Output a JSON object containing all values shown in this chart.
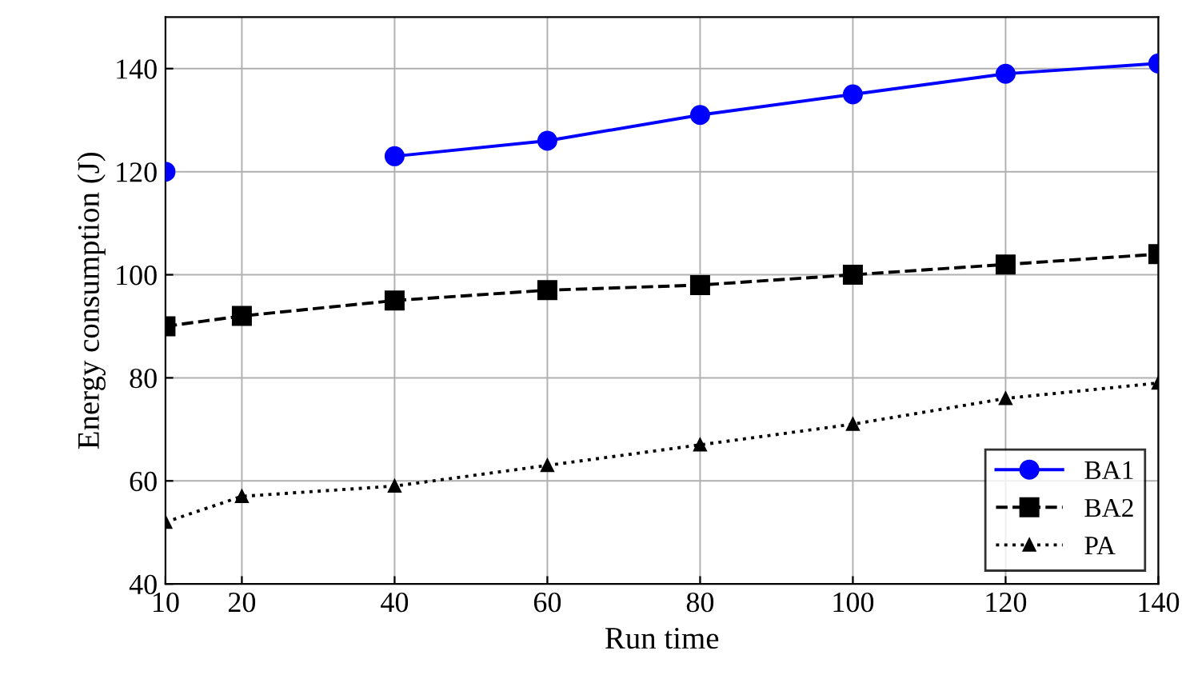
{
  "chart_data": {
    "type": "line",
    "xlabel": "Run time",
    "ylabel": "Energy consumption (J)",
    "x": [
      10,
      20,
      40,
      60,
      80,
      100,
      120,
      140
    ],
    "series": [
      {
        "name": "BA1",
        "color": "#0000ff",
        "marker": "circle",
        "line_style": "solid",
        "values": [
          120,
          null,
          123,
          126,
          131,
          135,
          139,
          141
        ]
      },
      {
        "name": "BA2",
        "color": "#000000",
        "marker": "square",
        "line_style": "dashed",
        "values": [
          90,
          92,
          95,
          97,
          98,
          100,
          102,
          104
        ]
      },
      {
        "name": "PA",
        "color": "#000000",
        "marker": "triangle",
        "line_style": "dotted",
        "values": [
          52,
          57,
          59,
          63,
          67,
          71,
          76,
          79
        ]
      }
    ],
    "xlim": [
      10,
      140
    ],
    "ylim": [
      40,
      150
    ],
    "xticks": [
      10,
      20,
      40,
      60,
      80,
      100,
      120,
      140
    ],
    "yticks": [
      40,
      60,
      80,
      100,
      120,
      140
    ],
    "grid": true,
    "legend": "bottom right"
  }
}
